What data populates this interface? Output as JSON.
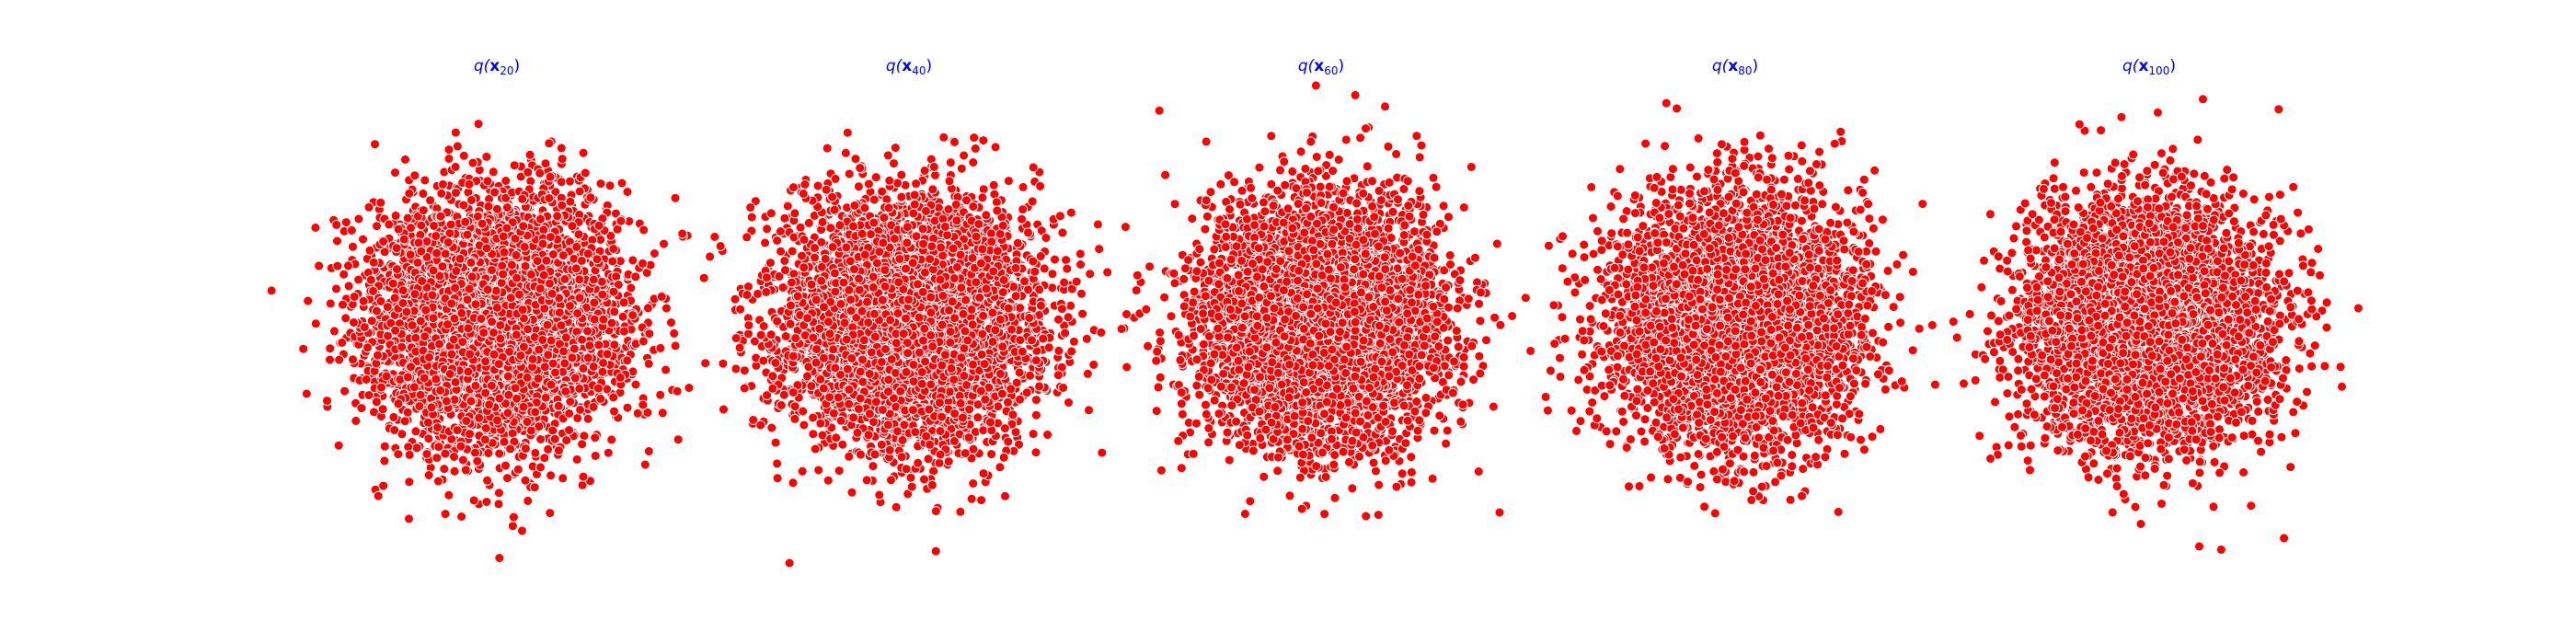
{
  "figure": {
    "background": "#ffffff"
  },
  "style": {
    "title_color": "#0000ff",
    "point_color": "#ff0000",
    "point_edge_color": "#ffffff"
  },
  "chart_data": [
    {
      "type": "scatter",
      "title_prefix": "q(",
      "title_var": "x",
      "title_sub": "20",
      "title_suffix": ")",
      "axes": "off",
      "grid": false,
      "xlim": [
        -4.2,
        4.2
      ],
      "ylim": [
        -4.2,
        4.2
      ],
      "distribution": {
        "center": [
          0.0,
          0.0
        ],
        "std": [
          1.0,
          1.0
        ],
        "n_points": 5000
      }
    },
    {
      "type": "scatter",
      "title_prefix": "q(",
      "title_var": "x",
      "title_sub": "40",
      "title_suffix": ")",
      "axes": "off",
      "grid": false,
      "xlim": [
        -4.2,
        4.2
      ],
      "ylim": [
        -4.2,
        4.2
      ],
      "distribution": {
        "center": [
          0.0,
          0.0
        ],
        "std": [
          1.0,
          1.0
        ],
        "n_points": 5000
      }
    },
    {
      "type": "scatter",
      "title_prefix": "q(",
      "title_var": "x",
      "title_sub": "60",
      "title_suffix": ")",
      "axes": "off",
      "grid": false,
      "xlim": [
        -4.2,
        4.2
      ],
      "ylim": [
        -4.2,
        4.2
      ],
      "distribution": {
        "center": [
          0.0,
          0.0
        ],
        "std": [
          1.0,
          1.0
        ],
        "n_points": 5000
      }
    },
    {
      "type": "scatter",
      "title_prefix": "q(",
      "title_var": "x",
      "title_sub": "80",
      "title_suffix": ")",
      "axes": "off",
      "grid": false,
      "xlim": [
        -4.2,
        4.2
      ],
      "ylim": [
        -4.2,
        4.2
      ],
      "distribution": {
        "center": [
          0.0,
          0.0
        ],
        "std": [
          1.0,
          1.0
        ],
        "n_points": 5000
      }
    },
    {
      "type": "scatter",
      "title_prefix": "q(",
      "title_var": "x",
      "title_sub": "100",
      "title_suffix": ")",
      "axes": "off",
      "grid": false,
      "xlim": [
        -4.2,
        4.2
      ],
      "ylim": [
        -4.2,
        4.2
      ],
      "distribution": {
        "center": [
          0.0,
          0.0
        ],
        "std": [
          1.0,
          1.0
        ],
        "n_points": 5000
      }
    }
  ]
}
